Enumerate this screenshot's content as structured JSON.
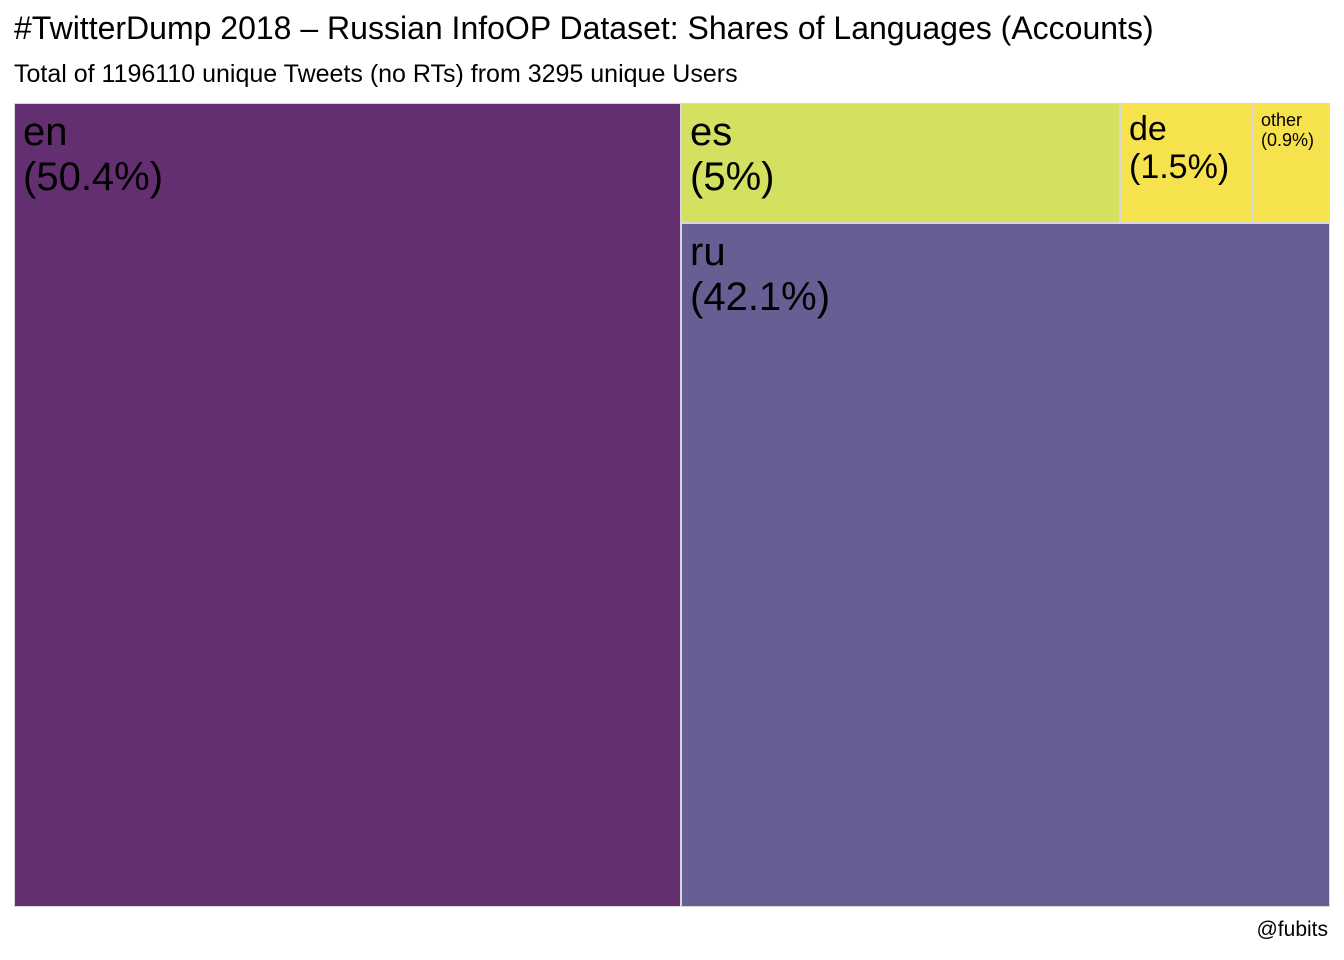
{
  "title": "#TwitterDump 2018 – Russian InfoOP Dataset: Shares of Languages (Accounts)",
  "subtitle": "Total of 1196110 unique Tweets (no RTs) from 3295 unique Users",
  "caption": "@fubits",
  "chart_data": {
    "type": "treemap",
    "title": "#TwitterDump 2018 – Russian InfoOP Dataset: Shares of Languages (Accounts)",
    "subtitle": "Total of 1196110 unique Tweets (no RTs) from 3295 unique Users",
    "legend": "none",
    "items": [
      {
        "label": "en",
        "value_text": "(50.4%)",
        "share": 50.4,
        "color": "#632f70"
      },
      {
        "label": "ru",
        "value_text": "(42.1%)",
        "share": 42.1,
        "color": "#655f93"
      },
      {
        "label": "es",
        "value_text": "(5%)",
        "share": 5.0,
        "color": "#d3e060"
      },
      {
        "label": "de",
        "value_text": "(1.5%)",
        "share": 1.5,
        "color": "#f6e24c"
      },
      {
        "label": "other",
        "value_text": "(0.9%)",
        "share": 0.9,
        "color": "#f6e24c"
      }
    ]
  }
}
